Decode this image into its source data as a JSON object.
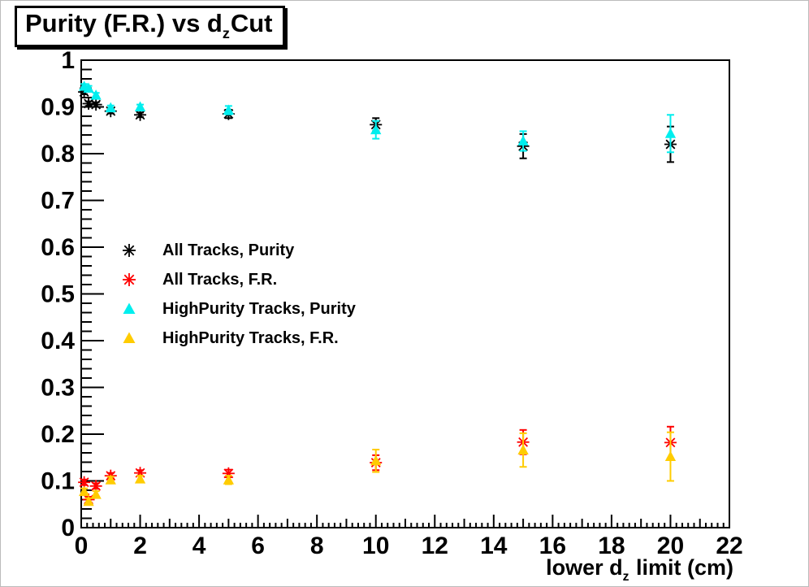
{
  "title": {
    "prefix": "Purity (F.R.) vs d",
    "subscript": "z",
    "suffix": "Cut"
  },
  "axes": {
    "x": {
      "label_prefix": "lower d",
      "label_subscript": "z",
      "label_suffix": " limit (cm)",
      "tick_labels": [
        "0",
        "2",
        "4",
        "6",
        "8",
        "10",
        "12",
        "14",
        "16",
        "18",
        "20",
        "22"
      ],
      "tick_values": [
        0,
        2,
        4,
        6,
        8,
        10,
        12,
        14,
        16,
        18,
        20,
        22
      ],
      "minor_step": 0.2,
      "range": [
        0,
        22
      ]
    },
    "y": {
      "tick_labels": [
        "0",
        "0.1",
        "0.2",
        "0.3",
        "0.4",
        "0.5",
        "0.6",
        "0.7",
        "0.8",
        "0.9",
        "1"
      ],
      "tick_values": [
        0,
        0.1,
        0.2,
        0.3,
        0.4,
        0.5,
        0.6,
        0.7,
        0.8,
        0.9,
        1
      ],
      "minor_step": 0.02,
      "range": [
        0,
        1
      ]
    }
  },
  "legend": {
    "entries": [
      {
        "label": "All Tracks, Purity",
        "marker": "asterisk",
        "color": "#000000"
      },
      {
        "label": "All Tracks, F.R.",
        "marker": "asterisk",
        "color": "#ff0000"
      },
      {
        "label": "HighPurity Tracks, Purity",
        "marker": "triangle",
        "color": "#00eeee"
      },
      {
        "label": "HighPurity Tracks, F.R.",
        "marker": "triangle",
        "color": "#ffcc00"
      }
    ]
  },
  "colors": {
    "frame": "#000000",
    "all_purity": "#000000",
    "all_fr": "#ff0000",
    "hp_purity": "#00eeee",
    "hp_fr": "#ffcc00"
  },
  "chart_data": {
    "type": "scatter",
    "title": "Purity (F.R.) vs d_z Cut",
    "xlabel": "lower d_z limit (cm)",
    "ylabel": "",
    "xlim": [
      0,
      22
    ],
    "ylim": [
      0,
      1
    ],
    "grid": false,
    "legend_position": "center-left",
    "x": [
      0.1,
      0.25,
      0.5,
      1,
      2,
      5,
      10,
      15,
      20
    ],
    "series": [
      {
        "name": "All Tracks, Purity",
        "marker": "asterisk",
        "color": "#000000",
        "values": [
          0.932,
          0.907,
          0.905,
          0.891,
          0.883,
          0.885,
          0.862,
          0.816,
          0.82
        ],
        "yerr": [
          0.005,
          0.005,
          0.005,
          0.005,
          0.005,
          0.009,
          0.014,
          0.026,
          0.038
        ]
      },
      {
        "name": "All Tracks, F.R.",
        "marker": "asterisk",
        "color": "#ff0000",
        "values": [
          0.097,
          0.06,
          0.089,
          0.111,
          0.117,
          0.116,
          0.139,
          0.183,
          0.182
        ],
        "yerr": [
          0.006,
          0.006,
          0.006,
          0.006,
          0.006,
          0.008,
          0.016,
          0.026,
          0.034
        ]
      },
      {
        "name": "HighPurity Tracks, Purity",
        "marker": "triangle",
        "color": "#00eeee",
        "values": [
          0.944,
          0.94,
          0.925,
          0.898,
          0.9,
          0.893,
          0.851,
          0.827,
          0.843
        ],
        "yerr": [
          0.005,
          0.005,
          0.005,
          0.005,
          0.005,
          0.009,
          0.019,
          0.021,
          0.04
        ]
      },
      {
        "name": "HighPurity Tracks, F.R.",
        "marker": "triangle",
        "color": "#ffcc00",
        "values": [
          0.077,
          0.056,
          0.071,
          0.102,
          0.104,
          0.102,
          0.143,
          0.166,
          0.152
        ],
        "yerr": [
          0.007,
          0.007,
          0.007,
          0.007,
          0.007,
          0.009,
          0.024,
          0.036,
          0.052
        ]
      }
    ]
  }
}
